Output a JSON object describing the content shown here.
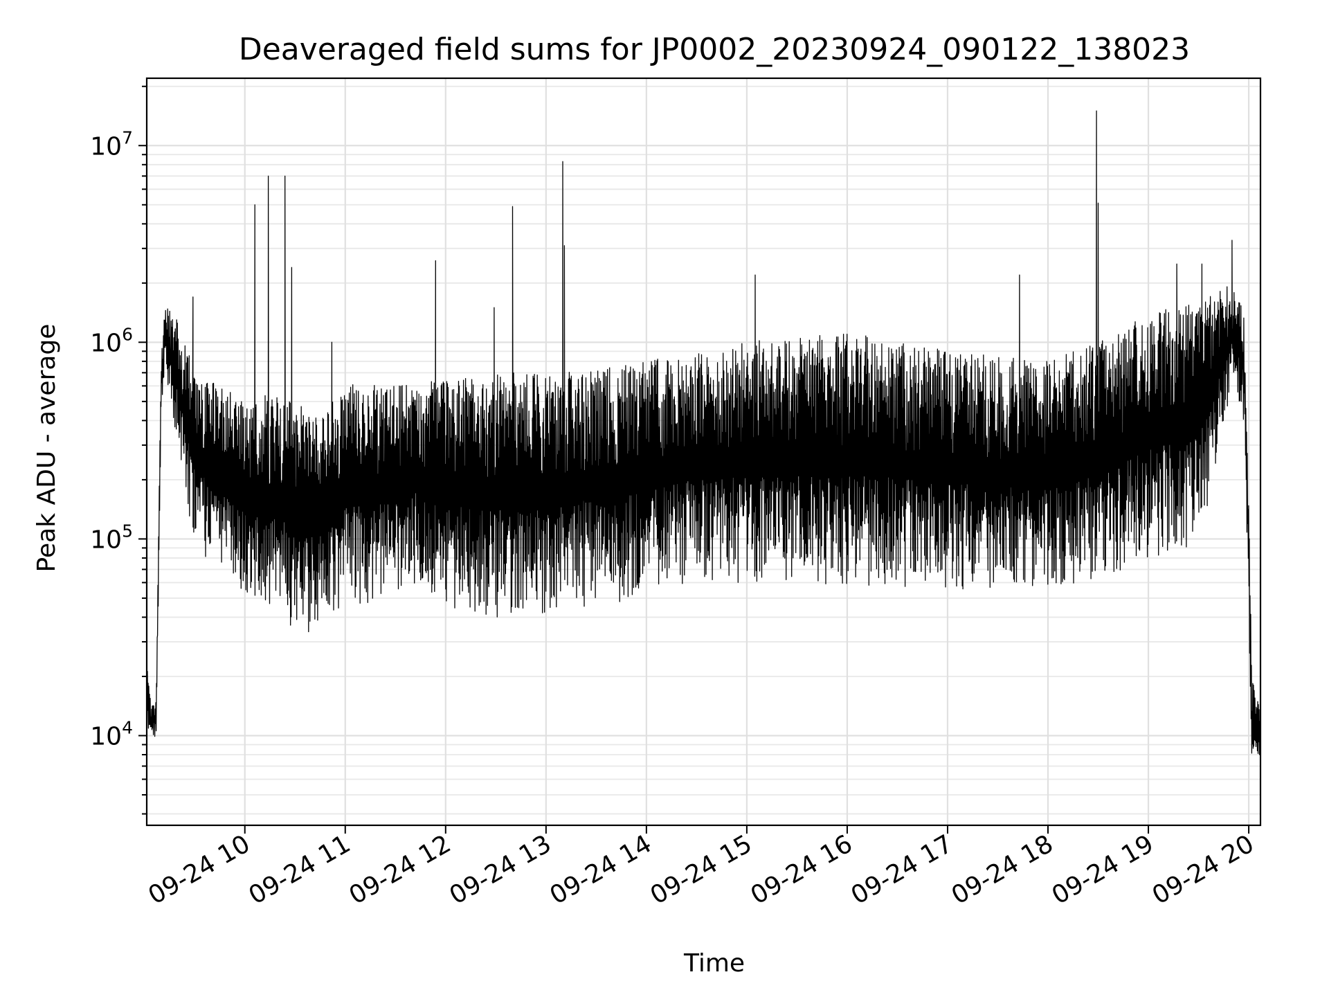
{
  "chart_data": {
    "type": "line",
    "title": "Deaveraged field sums for JP0002_20230924_090122_138023",
    "xlabel": "Time",
    "ylabel": "Peak ADU - average",
    "yscale": "log",
    "grid": "on (major and minor)",
    "xlim": [
      "2023-09-24 09:01:22",
      "2023-09-24 20:07:00"
    ],
    "ylim": [
      3500,
      22000000
    ],
    "x_ticks": [
      "09-24 10",
      "09-24 11",
      "09-24 12",
      "09-24 13",
      "09-24 14",
      "09-24 15",
      "09-24 16",
      "09-24 17",
      "09-24 18",
      "09-24 19",
      "09-24 20"
    ],
    "y_ticks": [
      {
        "value": 10000,
        "base": "10",
        "exp": "4"
      },
      {
        "value": 100000,
        "base": "10",
        "exp": "5"
      },
      {
        "value": 1000000,
        "base": "10",
        "exp": "6"
      },
      {
        "value": 10000000,
        "base": "10",
        "exp": "7"
      }
    ],
    "line_color": "#000000",
    "series": [
      {
        "upper_envelope": [
          [
            "2023-09-24 09:01:22",
            24000
          ],
          [
            "2023-09-24 09:04:00",
            14000
          ],
          [
            "2023-09-24 09:07:00",
            15000
          ],
          [
            "2023-09-24 09:10:00",
            900000
          ],
          [
            "2023-09-24 09:12:00",
            1600000
          ],
          [
            "2023-09-24 09:20:00",
            1300000
          ],
          [
            "2023-09-24 09:30:00",
            700000
          ],
          [
            "2023-09-24 09:45:00",
            600000
          ],
          [
            "2023-09-24 10:00:00",
            500000
          ],
          [
            "2023-09-24 10:15:00",
            550000
          ],
          [
            "2023-09-24 10:30:00",
            500000
          ],
          [
            "2023-09-24 10:45:00",
            450000
          ],
          [
            "2023-09-24 11:00:00",
            600000
          ],
          [
            "2023-09-24 11:15:00",
            650000
          ],
          [
            "2023-09-24 11:30:00",
            600000
          ],
          [
            "2023-09-24 11:45:00",
            650000
          ],
          [
            "2023-09-24 12:00:00",
            650000
          ],
          [
            "2023-09-24 12:30:00",
            700000
          ],
          [
            "2023-09-24 13:00:00",
            700000
          ],
          [
            "2023-09-24 13:30:00",
            750000
          ],
          [
            "2023-09-24 14:00:00",
            800000
          ],
          [
            "2023-09-24 14:30:00",
            900000
          ],
          [
            "2023-09-24 15:00:00",
            1000000
          ],
          [
            "2023-09-24 15:30:00",
            1100000
          ],
          [
            "2023-09-24 16:00:00",
            1100000
          ],
          [
            "2023-09-24 16:30:00",
            1050000
          ],
          [
            "2023-09-24 17:00:00",
            900000
          ],
          [
            "2023-09-24 17:30:00",
            850000
          ],
          [
            "2023-09-24 18:00:00",
            800000
          ],
          [
            "2023-09-24 18:30:00",
            1000000
          ],
          [
            "2023-09-24 19:00:00",
            1400000
          ],
          [
            "2023-09-24 19:30:00",
            1600000
          ],
          [
            "2023-09-24 19:50:00",
            2000000
          ],
          [
            "2023-09-24 19:57:00",
            1500000
          ],
          [
            "2023-09-24 20:00:00",
            150000
          ],
          [
            "2023-09-24 20:02:00",
            20000
          ],
          [
            "2023-09-24 20:07:00",
            13000
          ]
        ],
        "lower_envelope": [
          [
            "2023-09-24 09:01:22",
            9500
          ],
          [
            "2023-09-24 09:04:00",
            9500
          ],
          [
            "2023-09-24 09:07:00",
            10000
          ],
          [
            "2023-09-24 09:10:00",
            400000
          ],
          [
            "2023-09-24 09:12:00",
            700000
          ],
          [
            "2023-09-24 09:20:00",
            300000
          ],
          [
            "2023-09-24 09:30:00",
            90000
          ],
          [
            "2023-09-24 09:45:00",
            70000
          ],
          [
            "2023-09-24 10:00:00",
            50000
          ],
          [
            "2023-09-24 10:15:00",
            42000
          ],
          [
            "2023-09-24 10:30:00",
            35000
          ],
          [
            "2023-09-24 10:45:00",
            32000
          ],
          [
            "2023-09-24 11:00:00",
            50000
          ],
          [
            "2023-09-24 11:15:00",
            45000
          ],
          [
            "2023-09-24 11:30:00",
            55000
          ],
          [
            "2023-09-24 11:45:00",
            60000
          ],
          [
            "2023-09-24 12:00:00",
            45000
          ],
          [
            "2023-09-24 12:30:00",
            38000
          ],
          [
            "2023-09-24 13:00:00",
            42000
          ],
          [
            "2023-09-24 13:30:00",
            45000
          ],
          [
            "2023-09-24 14:00:00",
            50000
          ],
          [
            "2023-09-24 14:30:00",
            60000
          ],
          [
            "2023-09-24 15:00:00",
            60000
          ],
          [
            "2023-09-24 15:30:00",
            55000
          ],
          [
            "2023-09-24 16:00:00",
            55000
          ],
          [
            "2023-09-24 16:30:00",
            55000
          ],
          [
            "2023-09-24 17:00:00",
            55000
          ],
          [
            "2023-09-24 17:30:00",
            55000
          ],
          [
            "2023-09-24 18:00:00",
            55000
          ],
          [
            "2023-09-24 18:30:00",
            60000
          ],
          [
            "2023-09-24 19:00:00",
            80000
          ],
          [
            "2023-09-24 19:30:00",
            90000
          ],
          [
            "2023-09-24 19:50:00",
            600000
          ],
          [
            "2023-09-24 19:57:00",
            400000
          ],
          [
            "2023-09-24 20:00:00",
            40000
          ],
          [
            "2023-09-24 20:02:00",
            6000
          ],
          [
            "2023-09-24 20:07:00",
            8000
          ]
        ],
        "spikes": [
          [
            "2023-09-24 09:29:00",
            1700000
          ],
          [
            "2023-09-24 10:06:00",
            5000000
          ],
          [
            "2023-09-24 10:14:00",
            7000000
          ],
          [
            "2023-09-24 10:24:00",
            7000000
          ],
          [
            "2023-09-24 10:28:00",
            2400000
          ],
          [
            "2023-09-24 10:52:00",
            1000000
          ],
          [
            "2023-09-24 11:54:00",
            2600000
          ],
          [
            "2023-09-24 12:29:00",
            1500000
          ],
          [
            "2023-09-24 12:40:00",
            4900000
          ],
          [
            "2023-09-24 13:10:00",
            8300000
          ],
          [
            "2023-09-24 13:11:00",
            3100000
          ],
          [
            "2023-09-24 15:05:00",
            2200000
          ],
          [
            "2023-09-24 17:43:00",
            2200000
          ],
          [
            "2023-09-24 18:29:00",
            15000000
          ],
          [
            "2023-09-24 18:30:00",
            5100000
          ],
          [
            "2023-09-24 19:17:00",
            2500000
          ],
          [
            "2023-09-24 19:32:00",
            2500000
          ],
          [
            "2023-09-24 19:50:00",
            3300000
          ]
        ]
      }
    ]
  }
}
